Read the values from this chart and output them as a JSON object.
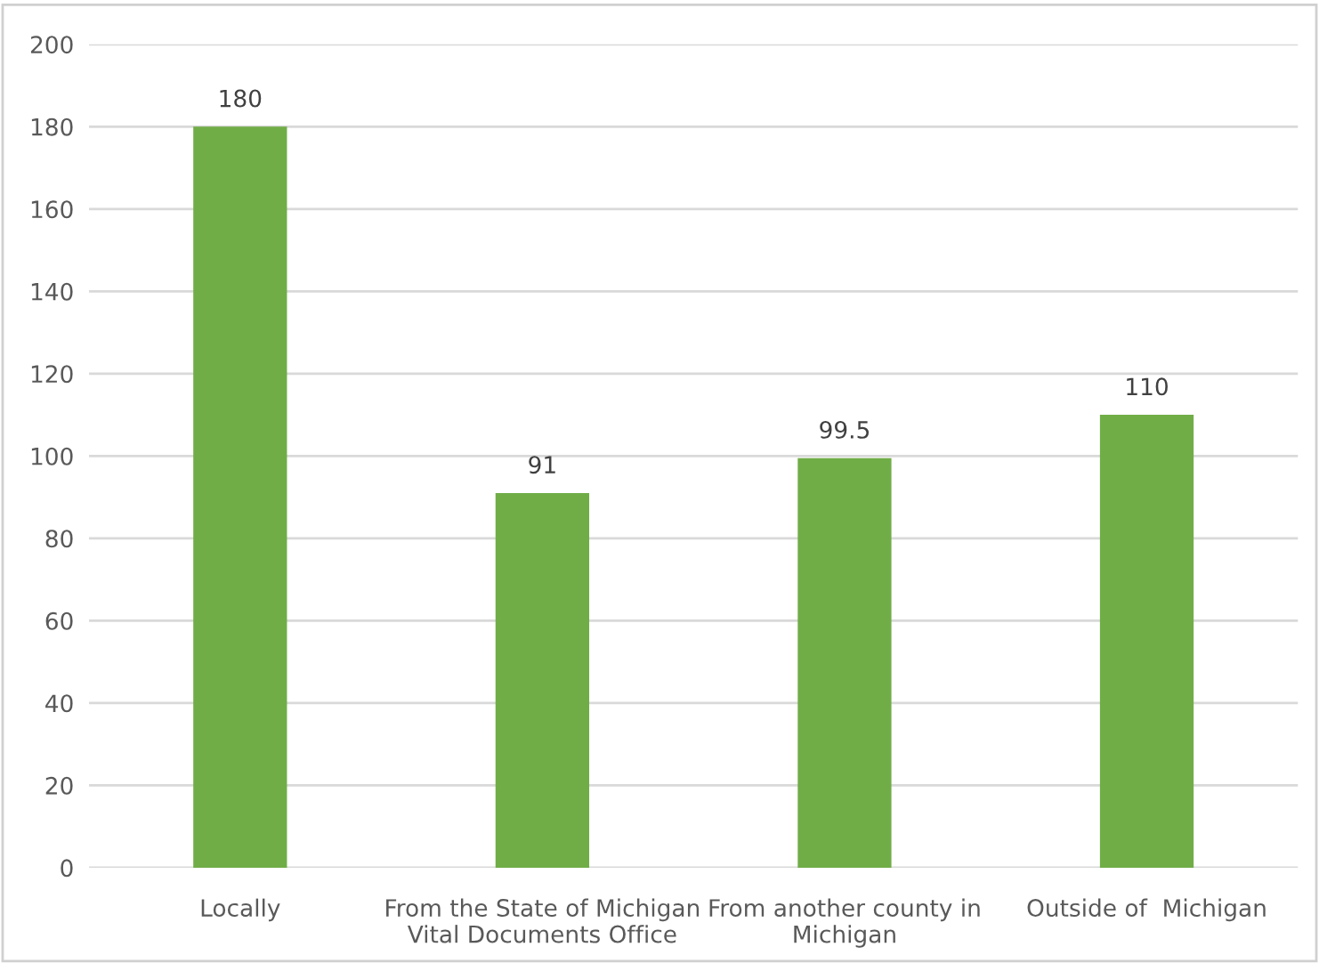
{
  "chart_data": {
    "type": "bar",
    "categories": [
      "Locally",
      "From the State of Michigan\nVital Documents Office",
      "From another county in\nMichigan",
      "Outside of  Michigan"
    ],
    "values": [
      180,
      91,
      99.5,
      110
    ],
    "color": "#70ad47",
    "ylim": [
      0,
      200
    ],
    "yticks": [
      0,
      20,
      40,
      60,
      80,
      100,
      120,
      140,
      160,
      180,
      200
    ],
    "grid": "y",
    "data_labels": true
  }
}
